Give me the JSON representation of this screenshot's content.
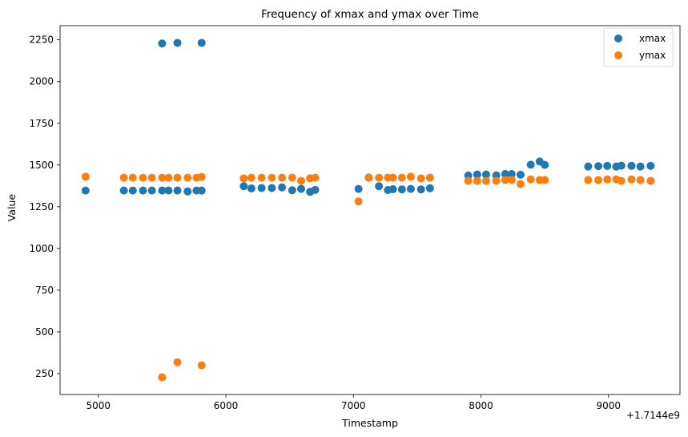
{
  "chart_data": {
    "type": "scatter",
    "title": "Frequency of xmax and ymax over Time",
    "xlabel": "Timestamp",
    "ylabel": "Value",
    "x_offset_label": "+1.7144e9",
    "xlim": [
      4700,
      9560
    ],
    "ylim": [
      125,
      2335
    ],
    "xticks": [
      5000,
      6000,
      7000,
      8000,
      9000
    ],
    "yticks": [
      250,
      500,
      750,
      1000,
      1250,
      1500,
      1750,
      2000,
      2250
    ],
    "legend_position": "top-right",
    "series": [
      {
        "name": "xmax",
        "color": "#1f77b4",
        "points": [
          [
            4900,
            1347
          ],
          [
            5200,
            1347
          ],
          [
            5270,
            1347
          ],
          [
            5350,
            1347
          ],
          [
            5420,
            1347
          ],
          [
            5500,
            1347
          ],
          [
            5550,
            1347
          ],
          [
            5620,
            1347
          ],
          [
            5700,
            1342
          ],
          [
            5770,
            1347
          ],
          [
            5810,
            1347
          ],
          [
            5500,
            2228
          ],
          [
            5620,
            2232
          ],
          [
            5810,
            2232
          ],
          [
            6140,
            1373
          ],
          [
            6200,
            1360
          ],
          [
            6280,
            1362
          ],
          [
            6360,
            1362
          ],
          [
            6440,
            1366
          ],
          [
            6520,
            1349
          ],
          [
            6590,
            1357
          ],
          [
            6660,
            1339
          ],
          [
            6700,
            1351
          ],
          [
            7040,
            1357
          ],
          [
            7120,
            1425
          ],
          [
            7200,
            1373
          ],
          [
            7270,
            1350
          ],
          [
            7310,
            1355
          ],
          [
            7380,
            1354
          ],
          [
            7450,
            1357
          ],
          [
            7530,
            1354
          ],
          [
            7600,
            1361
          ],
          [
            7900,
            1437
          ],
          [
            7970,
            1443
          ],
          [
            8040,
            1443
          ],
          [
            8120,
            1438
          ],
          [
            8190,
            1446
          ],
          [
            8240,
            1446
          ],
          [
            8310,
            1442
          ],
          [
            8390,
            1502
          ],
          [
            8460,
            1521
          ],
          [
            8500,
            1501
          ],
          [
            8840,
            1491
          ],
          [
            8920,
            1493
          ],
          [
            8990,
            1495
          ],
          [
            9060,
            1491
          ],
          [
            9100,
            1496
          ],
          [
            9180,
            1495
          ],
          [
            9250,
            1491
          ],
          [
            9330,
            1495
          ]
        ]
      },
      {
        "name": "ymax",
        "color": "#ff7f0e",
        "points": [
          [
            4900,
            1430
          ],
          [
            5200,
            1424
          ],
          [
            5270,
            1424
          ],
          [
            5350,
            1424
          ],
          [
            5420,
            1424
          ],
          [
            5500,
            1424
          ],
          [
            5550,
            1424
          ],
          [
            5620,
            1424
          ],
          [
            5700,
            1424
          ],
          [
            5770,
            1424
          ],
          [
            5810,
            1429
          ],
          [
            5500,
            228
          ],
          [
            5620,
            318
          ],
          [
            5810,
            300
          ],
          [
            6140,
            1420
          ],
          [
            6200,
            1424
          ],
          [
            6280,
            1424
          ],
          [
            6360,
            1424
          ],
          [
            6440,
            1424
          ],
          [
            6520,
            1424
          ],
          [
            6590,
            1405
          ],
          [
            6660,
            1421
          ],
          [
            6700,
            1424
          ],
          [
            7040,
            1282
          ],
          [
            7120,
            1424
          ],
          [
            7200,
            1424
          ],
          [
            7270,
            1424
          ],
          [
            7310,
            1424
          ],
          [
            7380,
            1424
          ],
          [
            7450,
            1430
          ],
          [
            7530,
            1420
          ],
          [
            7600,
            1424
          ],
          [
            7900,
            1405
          ],
          [
            7970,
            1405
          ],
          [
            8040,
            1405
          ],
          [
            8120,
            1405
          ],
          [
            8190,
            1411
          ],
          [
            8240,
            1411
          ],
          [
            8310,
            1386
          ],
          [
            8390,
            1414
          ],
          [
            8460,
            1410
          ],
          [
            8500,
            1410
          ],
          [
            8840,
            1410
          ],
          [
            8920,
            1410
          ],
          [
            8990,
            1414
          ],
          [
            9060,
            1414
          ],
          [
            9100,
            1405
          ],
          [
            9180,
            1414
          ],
          [
            9250,
            1410
          ],
          [
            9330,
            1405
          ]
        ]
      }
    ]
  }
}
